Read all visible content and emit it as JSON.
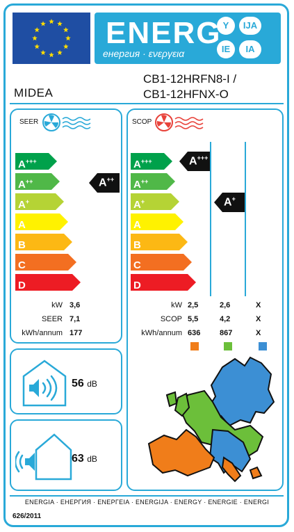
{
  "header": {
    "energy_word": "ENERG",
    "energy_subtitle": "енергия · ενεργεια",
    "language_suffixes": [
      "Y",
      "IJA",
      "IE",
      "IA"
    ]
  },
  "supplier": "MIDEA",
  "model": {
    "line1": "CB1-12HRFN8-I /",
    "line2": "CB1-12HFNX-O"
  },
  "scale": [
    {
      "letter": "A",
      "sup": "+++",
      "color": "#00a14b"
    },
    {
      "letter": "A",
      "sup": "++",
      "color": "#50b848"
    },
    {
      "letter": "A",
      "sup": "+",
      "color": "#b5d335"
    },
    {
      "letter": "A",
      "sup": "",
      "color": "#fff200"
    },
    {
      "letter": "B",
      "sup": "",
      "color": "#fcb814"
    },
    {
      "letter": "C",
      "sup": "",
      "color": "#f36f21"
    },
    {
      "letter": "D",
      "sup": "",
      "color": "#ed1c24"
    }
  ],
  "seer": {
    "title": "SEER",
    "rating": {
      "letter": "A",
      "sup": "++"
    },
    "rows": [
      {
        "label": "kW",
        "value": "3,6"
      },
      {
        "label": "SEER",
        "value": "7,1"
      },
      {
        "label": "kWh/annum",
        "value": "177"
      }
    ]
  },
  "scop": {
    "title": "SCOP",
    "rating_warmer": {
      "letter": "A",
      "sup": "+++"
    },
    "rating_average": {
      "letter": "A",
      "sup": "+"
    },
    "labels": [
      "kW",
      "SCOP",
      "kWh/annum"
    ],
    "columns": [
      {
        "values": [
          "2,5",
          "5,5",
          "636"
        ],
        "color": "#f07d1a"
      },
      {
        "values": [
          "2,6",
          "4,2",
          "867"
        ],
        "color": "#6cbf3a"
      },
      {
        "values": [
          "X",
          "X",
          "X"
        ],
        "color": "#3c8fd4"
      }
    ]
  },
  "noise": {
    "indoor": {
      "value": "56",
      "unit": "dB"
    },
    "outdoor": {
      "value": "63",
      "unit": "dB"
    }
  },
  "footer": {
    "languages": "ENERGIA · ЕНЕРГИЯ · ΕΝΕΡΓΕΙΑ · ENERGIJA · ENERGY · ENERGIE · ENERGI",
    "regulation": "626/2011"
  },
  "colors": {
    "frame": "#29a9d8",
    "eu_blue": "#1f4ea3",
    "eu_star": "#ffdd00",
    "rating_black": "#111111"
  }
}
